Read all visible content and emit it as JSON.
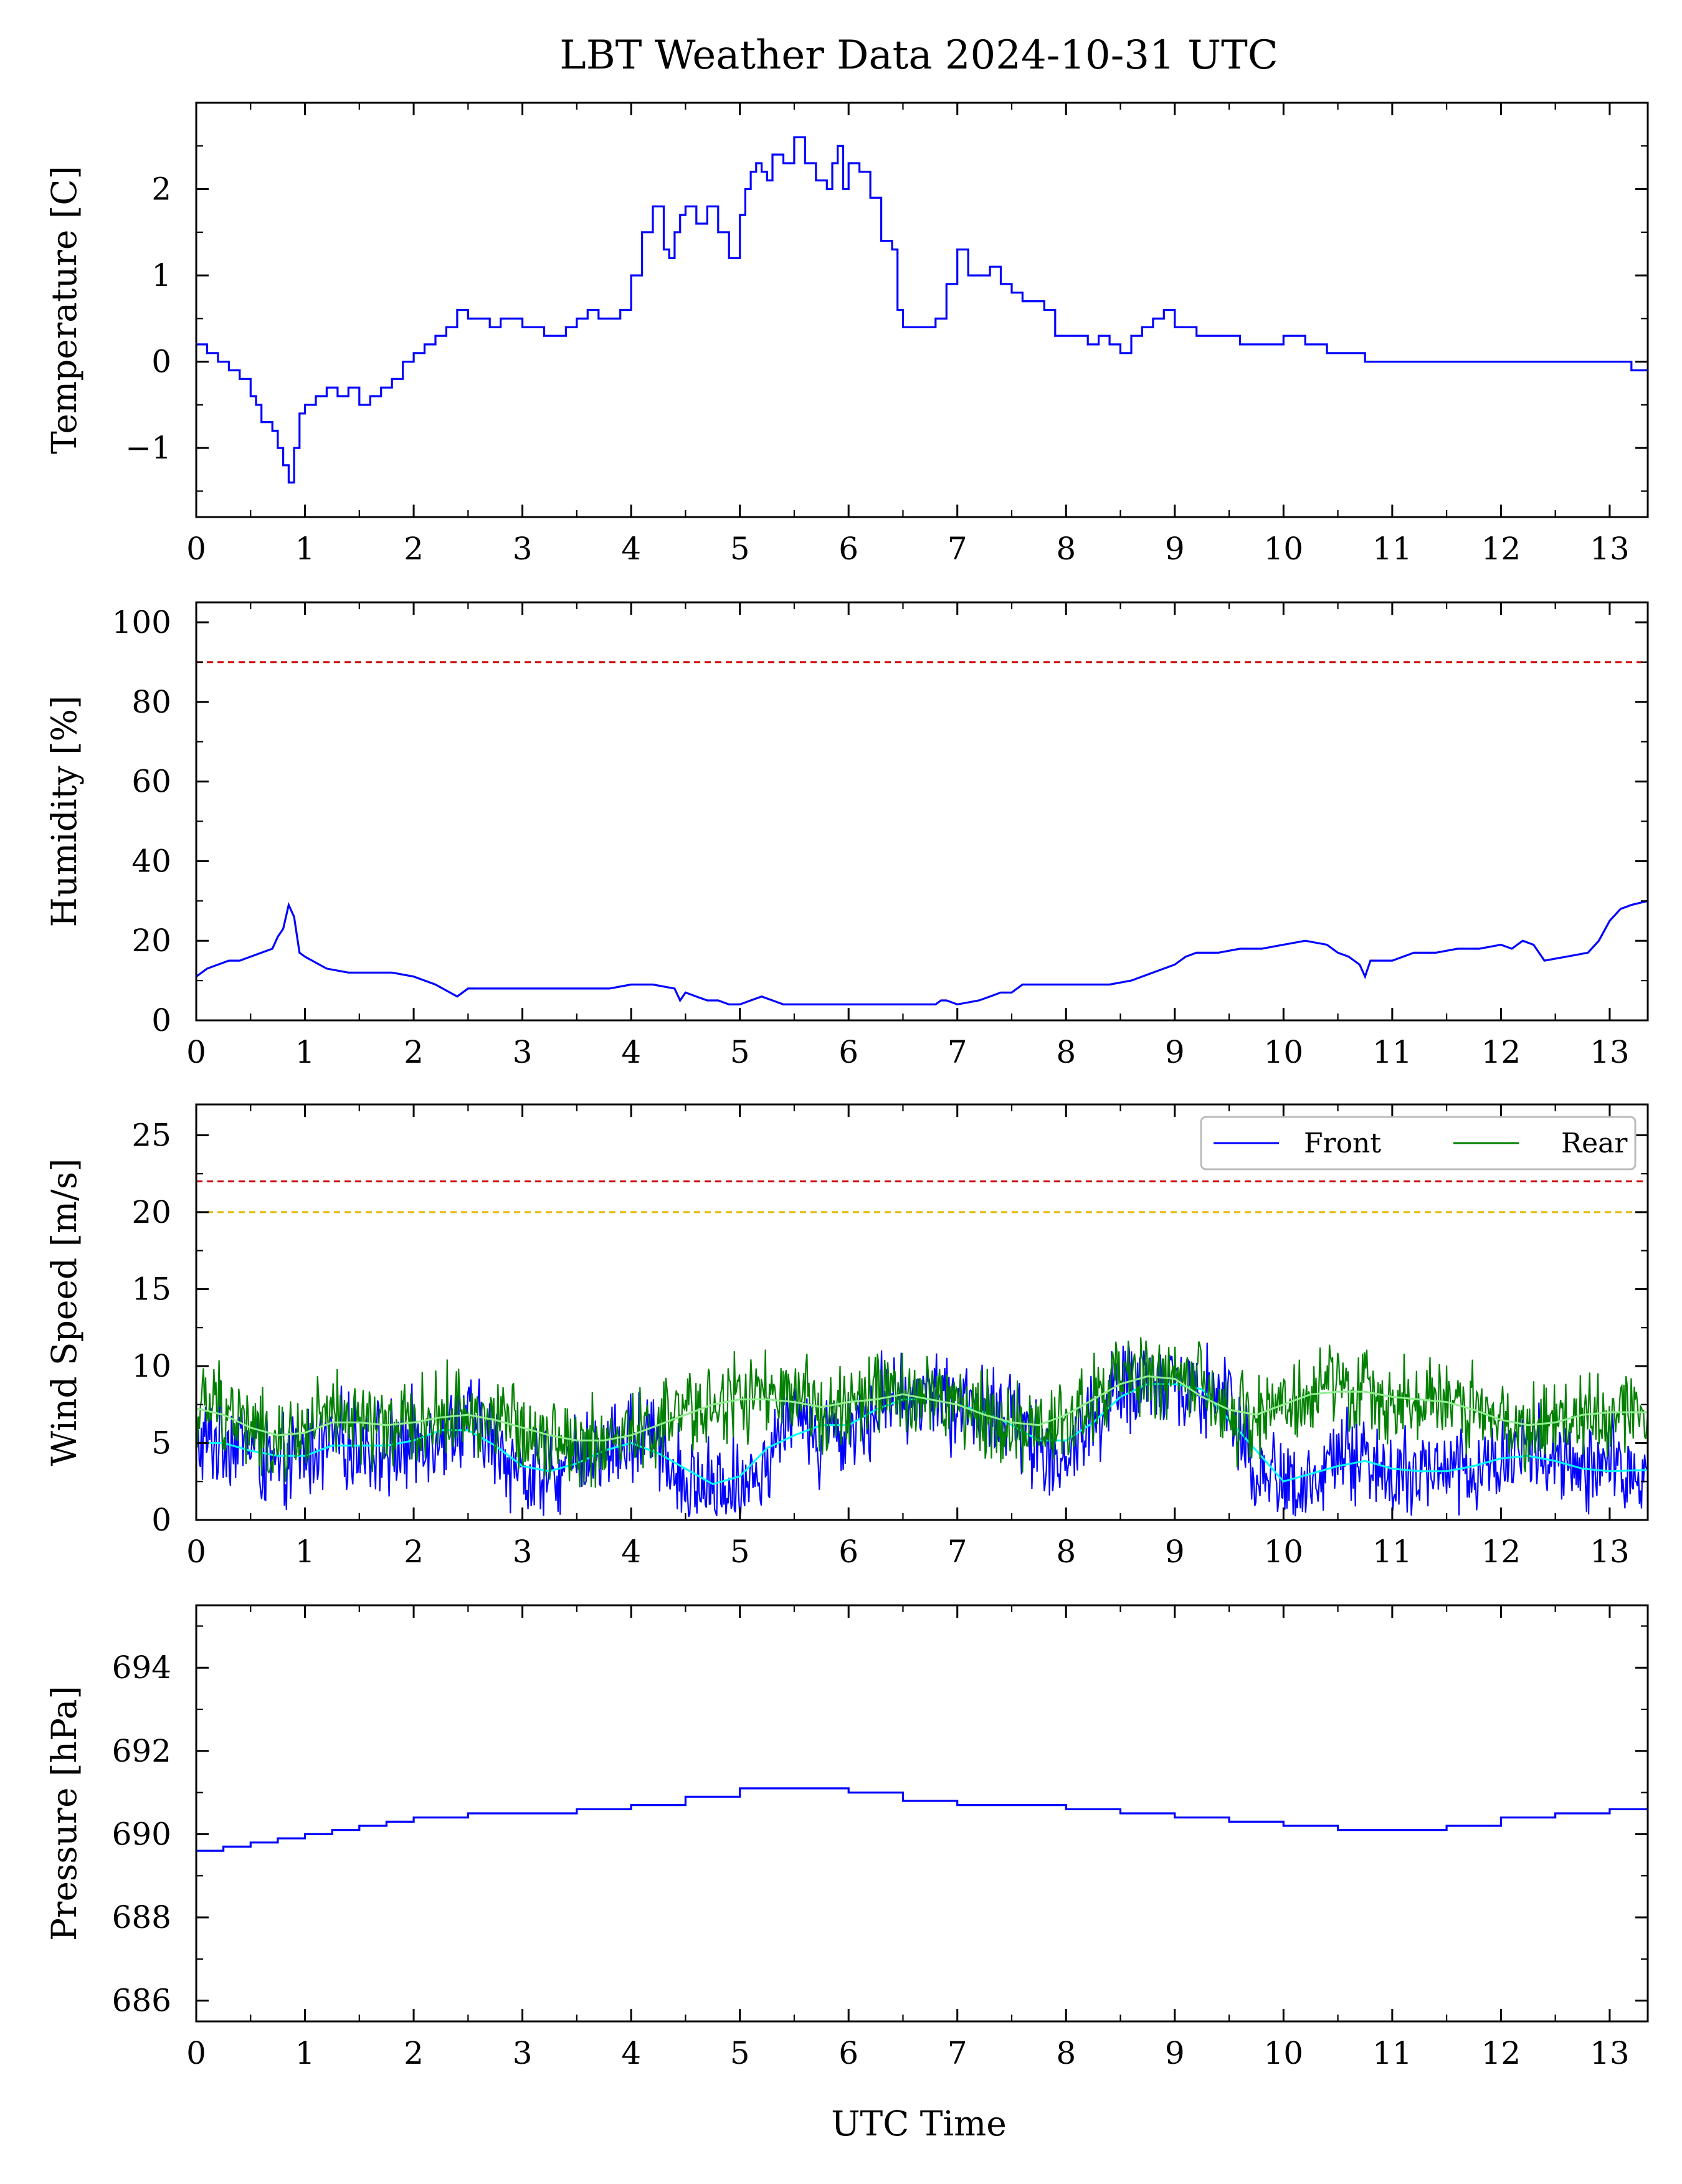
{
  "figure": {
    "title": "LBT Weather Data 2024-10-31 UTC",
    "xlabel": "UTC Time"
  },
  "colors": {
    "front": "#0000ff",
    "rear": "#008000",
    "front_smooth": "#00ffff",
    "rear_smooth": "#90ee90",
    "red_limit": "#cc0000",
    "yellow_limit": "#e6b800",
    "axes": "#000000"
  },
  "chart_data": [
    {
      "id": "temperature",
      "type": "line",
      "step": true,
      "ylabel": "Temperature [C]",
      "xlim": [
        0,
        13.35
      ],
      "ylim": [
        -1.8,
        3.0
      ],
      "xticks": [
        0,
        1,
        2,
        3,
        4,
        5,
        6,
        7,
        8,
        9,
        10,
        11,
        12,
        13
      ],
      "yticks": [
        -1,
        0,
        1,
        2
      ],
      "ytick_labels": [
        "−1",
        "0",
        "1",
        "2"
      ],
      "grid": false,
      "series": [
        {
          "color": "#0000ff",
          "x": [
            0,
            0.1,
            0.2,
            0.3,
            0.4,
            0.5,
            0.55,
            0.6,
            0.7,
            0.75,
            0.8,
            0.85,
            0.9,
            0.95,
            1.0,
            1.1,
            1.2,
            1.3,
            1.4,
            1.5,
            1.6,
            1.7,
            1.8,
            1.9,
            2.0,
            2.1,
            2.2,
            2.3,
            2.4,
            2.5,
            2.6,
            2.7,
            2.8,
            2.9,
            3.0,
            3.1,
            3.2,
            3.3,
            3.4,
            3.5,
            3.6,
            3.7,
            3.8,
            3.9,
            4.0,
            4.1,
            4.2,
            4.3,
            4.35,
            4.4,
            4.45,
            4.5,
            4.6,
            4.7,
            4.8,
            4.9,
            5.0,
            5.05,
            5.1,
            5.15,
            5.2,
            5.25,
            5.3,
            5.4,
            5.5,
            5.6,
            5.7,
            5.8,
            5.85,
            5.9,
            5.95,
            6.0,
            6.1,
            6.2,
            6.3,
            6.4,
            6.45,
            6.5,
            6.6,
            6.7,
            6.8,
            6.9,
            7.0,
            7.1,
            7.2,
            7.3,
            7.4,
            7.5,
            7.55,
            7.6,
            7.7,
            7.8,
            7.9,
            8.0,
            8.05,
            8.1,
            8.15,
            8.2,
            8.3,
            8.4,
            8.5,
            8.6,
            8.7,
            8.8,
            8.9,
            9.0,
            9.1,
            9.2,
            9.3,
            9.4,
            9.6,
            9.8,
            10.0,
            10.2,
            10.25,
            10.4,
            10.6,
            10.7,
            10.75,
            10.8,
            11.0,
            11.2,
            11.4,
            11.6,
            11.8,
            12.0,
            12.2,
            12.3,
            12.4,
            12.6,
            12.8,
            13.0,
            13.1,
            13.2,
            13.35
          ],
          "y": [
            0.2,
            0.1,
            0.0,
            -0.1,
            -0.2,
            -0.4,
            -0.5,
            -0.7,
            -0.8,
            -1.0,
            -1.2,
            -1.4,
            -1.0,
            -0.6,
            -0.5,
            -0.4,
            -0.3,
            -0.4,
            -0.3,
            -0.5,
            -0.4,
            -0.3,
            -0.2,
            0.0,
            0.1,
            0.2,
            0.3,
            0.4,
            0.6,
            0.5,
            0.5,
            0.4,
            0.5,
            0.5,
            0.4,
            0.4,
            0.3,
            0.3,
            0.4,
            0.5,
            0.6,
            0.5,
            0.5,
            0.6,
            1.0,
            1.5,
            1.8,
            1.3,
            1.2,
            1.5,
            1.7,
            1.8,
            1.6,
            1.8,
            1.5,
            1.2,
            1.7,
            2.0,
            2.2,
            2.3,
            2.2,
            2.1,
            2.4,
            2.3,
            2.6,
            2.3,
            2.1,
            2.0,
            2.3,
            2.5,
            2.0,
            2.3,
            2.2,
            1.9,
            1.4,
            1.3,
            0.6,
            0.4,
            0.4,
            0.4,
            0.5,
            0.9,
            1.3,
            1.0,
            1.0,
            1.1,
            0.9,
            0.8,
            0.8,
            0.7,
            0.7,
            0.6,
            0.3,
            0.3,
            0.3,
            0.3,
            0.3,
            0.2,
            0.3,
            0.2,
            0.1,
            0.3,
            0.4,
            0.5,
            0.6,
            0.4,
            0.4,
            0.3,
            0.3,
            0.3,
            0.2,
            0.2,
            0.3,
            0.2,
            0.2,
            0.1,
            0.1,
            0.1,
            0.0,
            0.0,
            0.0,
            0.0,
            0.0,
            0.0,
            0.0,
            0.0,
            0.0,
            0.0,
            0.0,
            0.0,
            0.0,
            0.0,
            0.0,
            -0.1,
            -0.1
          ]
        }
      ]
    },
    {
      "id": "humidity",
      "type": "line",
      "ylabel": "Humidity [%]",
      "xlim": [
        0,
        13.35
      ],
      "ylim": [
        0,
        105
      ],
      "xticks": [
        0,
        1,
        2,
        3,
        4,
        5,
        6,
        7,
        8,
        9,
        10,
        11,
        12,
        13
      ],
      "yticks": [
        0,
        20,
        40,
        60,
        80,
        100
      ],
      "grid": false,
      "hlines": [
        {
          "y": 90,
          "color": "#cc0000",
          "style": "dashed"
        }
      ],
      "series": [
        {
          "color": "#0000ff",
          "x": [
            0,
            0.1,
            0.2,
            0.3,
            0.4,
            0.5,
            0.6,
            0.7,
            0.75,
            0.8,
            0.85,
            0.9,
            0.95,
            1.0,
            1.2,
            1.4,
            1.6,
            1.8,
            2.0,
            2.2,
            2.4,
            2.5,
            2.8,
            3.0,
            3.2,
            3.4,
            3.6,
            3.8,
            4.0,
            4.2,
            4.4,
            4.45,
            4.5,
            4.6,
            4.7,
            4.8,
            4.9,
            5.0,
            5.1,
            5.2,
            5.3,
            5.4,
            5.6,
            5.8,
            6.0,
            6.2,
            6.4,
            6.6,
            6.8,
            6.85,
            6.9,
            7.0,
            7.2,
            7.3,
            7.4,
            7.5,
            7.6,
            7.8,
            8.0,
            8.2,
            8.4,
            8.6,
            8.8,
            9.0,
            9.1,
            9.2,
            9.4,
            9.6,
            9.8,
            10.0,
            10.2,
            10.4,
            10.5,
            10.6,
            10.7,
            10.75,
            10.8,
            11.0,
            11.2,
            11.4,
            11.6,
            11.8,
            12.0,
            12.1,
            12.2,
            12.3,
            12.4,
            12.6,
            12.8,
            12.9,
            13.0,
            13.1,
            13.2,
            13.35
          ],
          "y": [
            11,
            13,
            14,
            15,
            15,
            16,
            17,
            18,
            21,
            23,
            29,
            26,
            17,
            16,
            13,
            12,
            12,
            12,
            11,
            9,
            6,
            8,
            8,
            8,
            8,
            8,
            8,
            8,
            9,
            9,
            8,
            5,
            7,
            6,
            5,
            5,
            4,
            4,
            5,
            6,
            5,
            4,
            4,
            4,
            4,
            4,
            4,
            4,
            4,
            5,
            5,
            4,
            5,
            6,
            7,
            7,
            9,
            9,
            9,
            9,
            9,
            10,
            12,
            14,
            16,
            17,
            17,
            18,
            18,
            19,
            20,
            19,
            17,
            16,
            14,
            11,
            15,
            15,
            17,
            17,
            18,
            18,
            19,
            18,
            20,
            19,
            15,
            16,
            17,
            20,
            25,
            28,
            29,
            30
          ]
        }
      ]
    },
    {
      "id": "wind",
      "type": "line",
      "ylabel": "Wind Speed [m/s]",
      "xlim": [
        0,
        13.35
      ],
      "ylim": [
        0,
        27
      ],
      "xticks": [
        0,
        1,
        2,
        3,
        4,
        5,
        6,
        7,
        8,
        9,
        10,
        11,
        12,
        13
      ],
      "yticks": [
        0,
        5,
        10,
        15,
        20,
        25
      ],
      "grid": false,
      "legend_loc": "top-right",
      "hlines": [
        {
          "y": 22,
          "color": "#cc0000",
          "style": "dashed"
        },
        {
          "y": 20,
          "color": "#e6b800",
          "style": "dashed"
        }
      ],
      "series": [
        {
          "name": "Front",
          "color": "#0000ff",
          "smooth_color": "#00ffff",
          "x": [
            0,
            0.25,
            0.5,
            0.75,
            1.0,
            1.25,
            1.5,
            1.75,
            2.0,
            2.25,
            2.5,
            2.75,
            3.0,
            3.25,
            3.5,
            3.75,
            4.0,
            4.25,
            4.5,
            4.75,
            5.0,
            5.25,
            5.5,
            5.75,
            6.0,
            6.25,
            6.5,
            6.75,
            7.0,
            7.25,
            7.5,
            7.75,
            8.0,
            8.25,
            8.5,
            8.75,
            9.0,
            9.25,
            9.5,
            9.75,
            10.0,
            10.25,
            10.5,
            10.75,
            11.0,
            11.25,
            11.5,
            11.75,
            12.0,
            12.25,
            12.5,
            12.75,
            13.0,
            13.35
          ],
          "y": [
            4.5,
            5.5,
            5.0,
            3.0,
            4.5,
            5.0,
            5.0,
            4.5,
            5.0,
            6.0,
            6.5,
            5.0,
            3.0,
            2.5,
            4.0,
            4.5,
            5.0,
            5.5,
            2.5,
            2.0,
            2.5,
            4.0,
            7.5,
            5.0,
            6.0,
            7.5,
            8.0,
            8.0,
            7.5,
            7.0,
            6.5,
            5.0,
            4.0,
            6.5,
            8.5,
            9.0,
            9.0,
            8.5,
            8.0,
            3.0,
            2.5,
            2.0,
            4.5,
            4.0,
            3.0,
            3.0,
            3.5,
            3.0,
            4.0,
            5.0,
            3.5,
            3.0,
            3.5,
            3.0
          ]
        },
        {
          "name": "Rear",
          "color": "#008000",
          "smooth_color": "#90ee90",
          "x": [
            0,
            0.25,
            0.5,
            0.75,
            1.0,
            1.25,
            1.5,
            1.75,
            2.0,
            2.25,
            2.5,
            2.75,
            3.0,
            3.25,
            3.5,
            3.75,
            4.0,
            4.25,
            4.5,
            4.75,
            5.0,
            5.25,
            5.5,
            5.75,
            6.0,
            6.25,
            6.5,
            6.75,
            7.0,
            7.25,
            7.5,
            7.75,
            8.0,
            8.25,
            8.5,
            8.75,
            9.0,
            9.25,
            9.5,
            9.75,
            10.0,
            10.25,
            10.5,
            10.75,
            11.0,
            11.25,
            11.5,
            11.75,
            12.0,
            12.25,
            12.5,
            12.75,
            13.0,
            13.35
          ],
          "y": [
            7.0,
            7.5,
            6.0,
            4.5,
            6.0,
            6.5,
            6.5,
            6.0,
            6.0,
            7.0,
            7.0,
            6.5,
            6.0,
            5.5,
            5.0,
            5.0,
            5.5,
            6.0,
            7.0,
            7.5,
            8.0,
            8.0,
            7.5,
            7.5,
            7.0,
            8.5,
            8.0,
            8.0,
            7.5,
            7.0,
            6.0,
            6.0,
            6.5,
            8.0,
            9.0,
            9.5,
            9.5,
            8.5,
            6.0,
            7.0,
            7.5,
            8.0,
            9.0,
            8.0,
            8.0,
            8.0,
            7.5,
            7.5,
            6.5,
            5.5,
            6.5,
            7.0,
            7.0,
            7.0
          ]
        }
      ]
    },
    {
      "id": "pressure",
      "type": "line",
      "step": true,
      "ylabel": "Pressure [hPa]",
      "xlim": [
        0,
        13.35
      ],
      "ylim": [
        685.5,
        695.5
      ],
      "xticks": [
        0,
        1,
        2,
        3,
        4,
        5,
        6,
        7,
        8,
        9,
        10,
        11,
        12,
        13
      ],
      "yticks": [
        686,
        688,
        690,
        692,
        694
      ],
      "grid": false,
      "series": [
        {
          "color": "#0000ff",
          "x": [
            0,
            0.25,
            0.5,
            0.75,
            1.0,
            1.25,
            1.5,
            1.75,
            2.0,
            2.5,
            3.0,
            3.5,
            4.0,
            4.5,
            5.0,
            5.5,
            6.0,
            6.5,
            7.0,
            7.5,
            8.0,
            8.5,
            9.0,
            9.5,
            10.0,
            10.5,
            11.0,
            11.5,
            12.0,
            12.5,
            13.0,
            13.35
          ],
          "y": [
            689.6,
            689.7,
            689.8,
            689.9,
            690.0,
            690.1,
            690.2,
            690.3,
            690.4,
            690.5,
            690.5,
            690.6,
            690.7,
            690.9,
            691.1,
            691.1,
            691.0,
            690.8,
            690.7,
            690.7,
            690.6,
            690.5,
            690.4,
            690.3,
            690.2,
            690.1,
            690.1,
            690.2,
            690.4,
            690.5,
            690.6,
            690.6
          ]
        }
      ]
    }
  ]
}
